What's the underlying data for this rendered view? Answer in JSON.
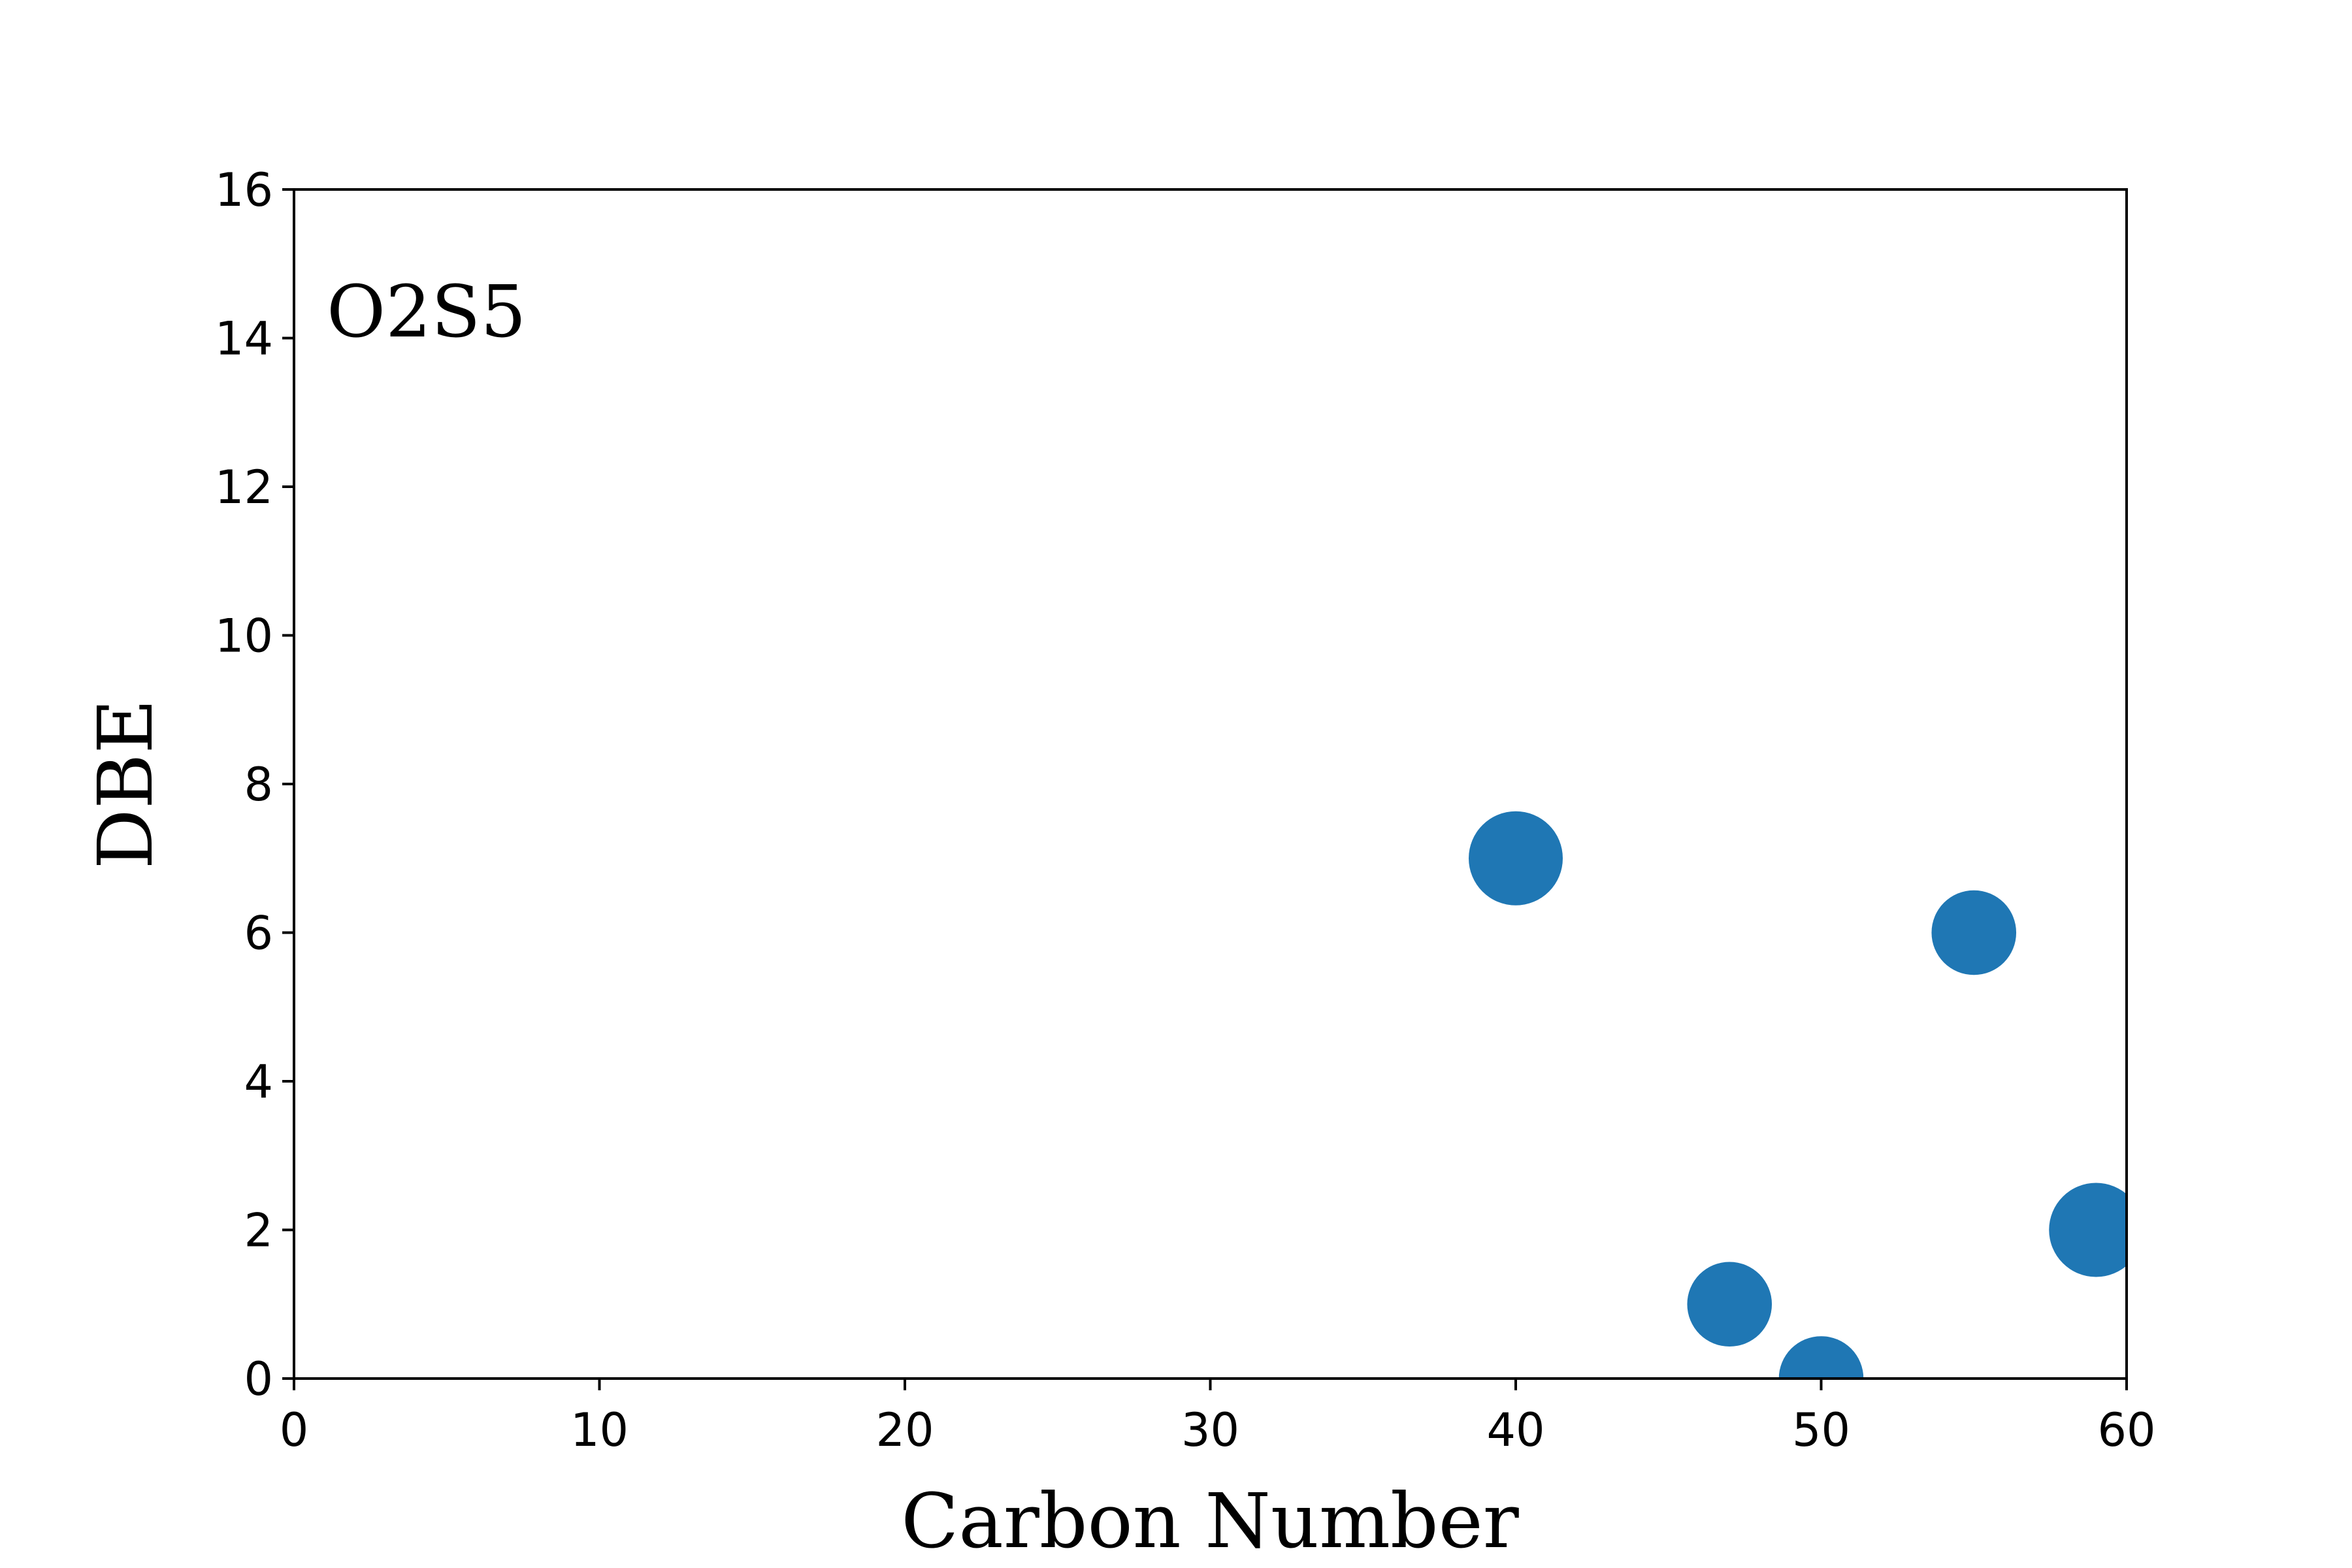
{
  "chart_data": {
    "type": "scatter",
    "annotation": "O2S5",
    "xlabel": "Carbon Number",
    "ylabel": "DBE",
    "xlim": [
      0,
      60
    ],
    "ylim": [
      0,
      16
    ],
    "xticks": [
      0,
      10,
      20,
      30,
      40,
      50,
      60
    ],
    "yticks": [
      0,
      2,
      4,
      6,
      8,
      10,
      12,
      14,
      16
    ],
    "grid": false,
    "color": "#1f77b4",
    "points": [
      {
        "x": 40,
        "y": 7,
        "size": 1.0
      },
      {
        "x": 47,
        "y": 1,
        "size": 0.9
      },
      {
        "x": 50,
        "y": 0,
        "size": 0.9
      },
      {
        "x": 55,
        "y": 6,
        "size": 0.9
      },
      {
        "x": 59,
        "y": 2,
        "size": 1.0
      }
    ]
  }
}
